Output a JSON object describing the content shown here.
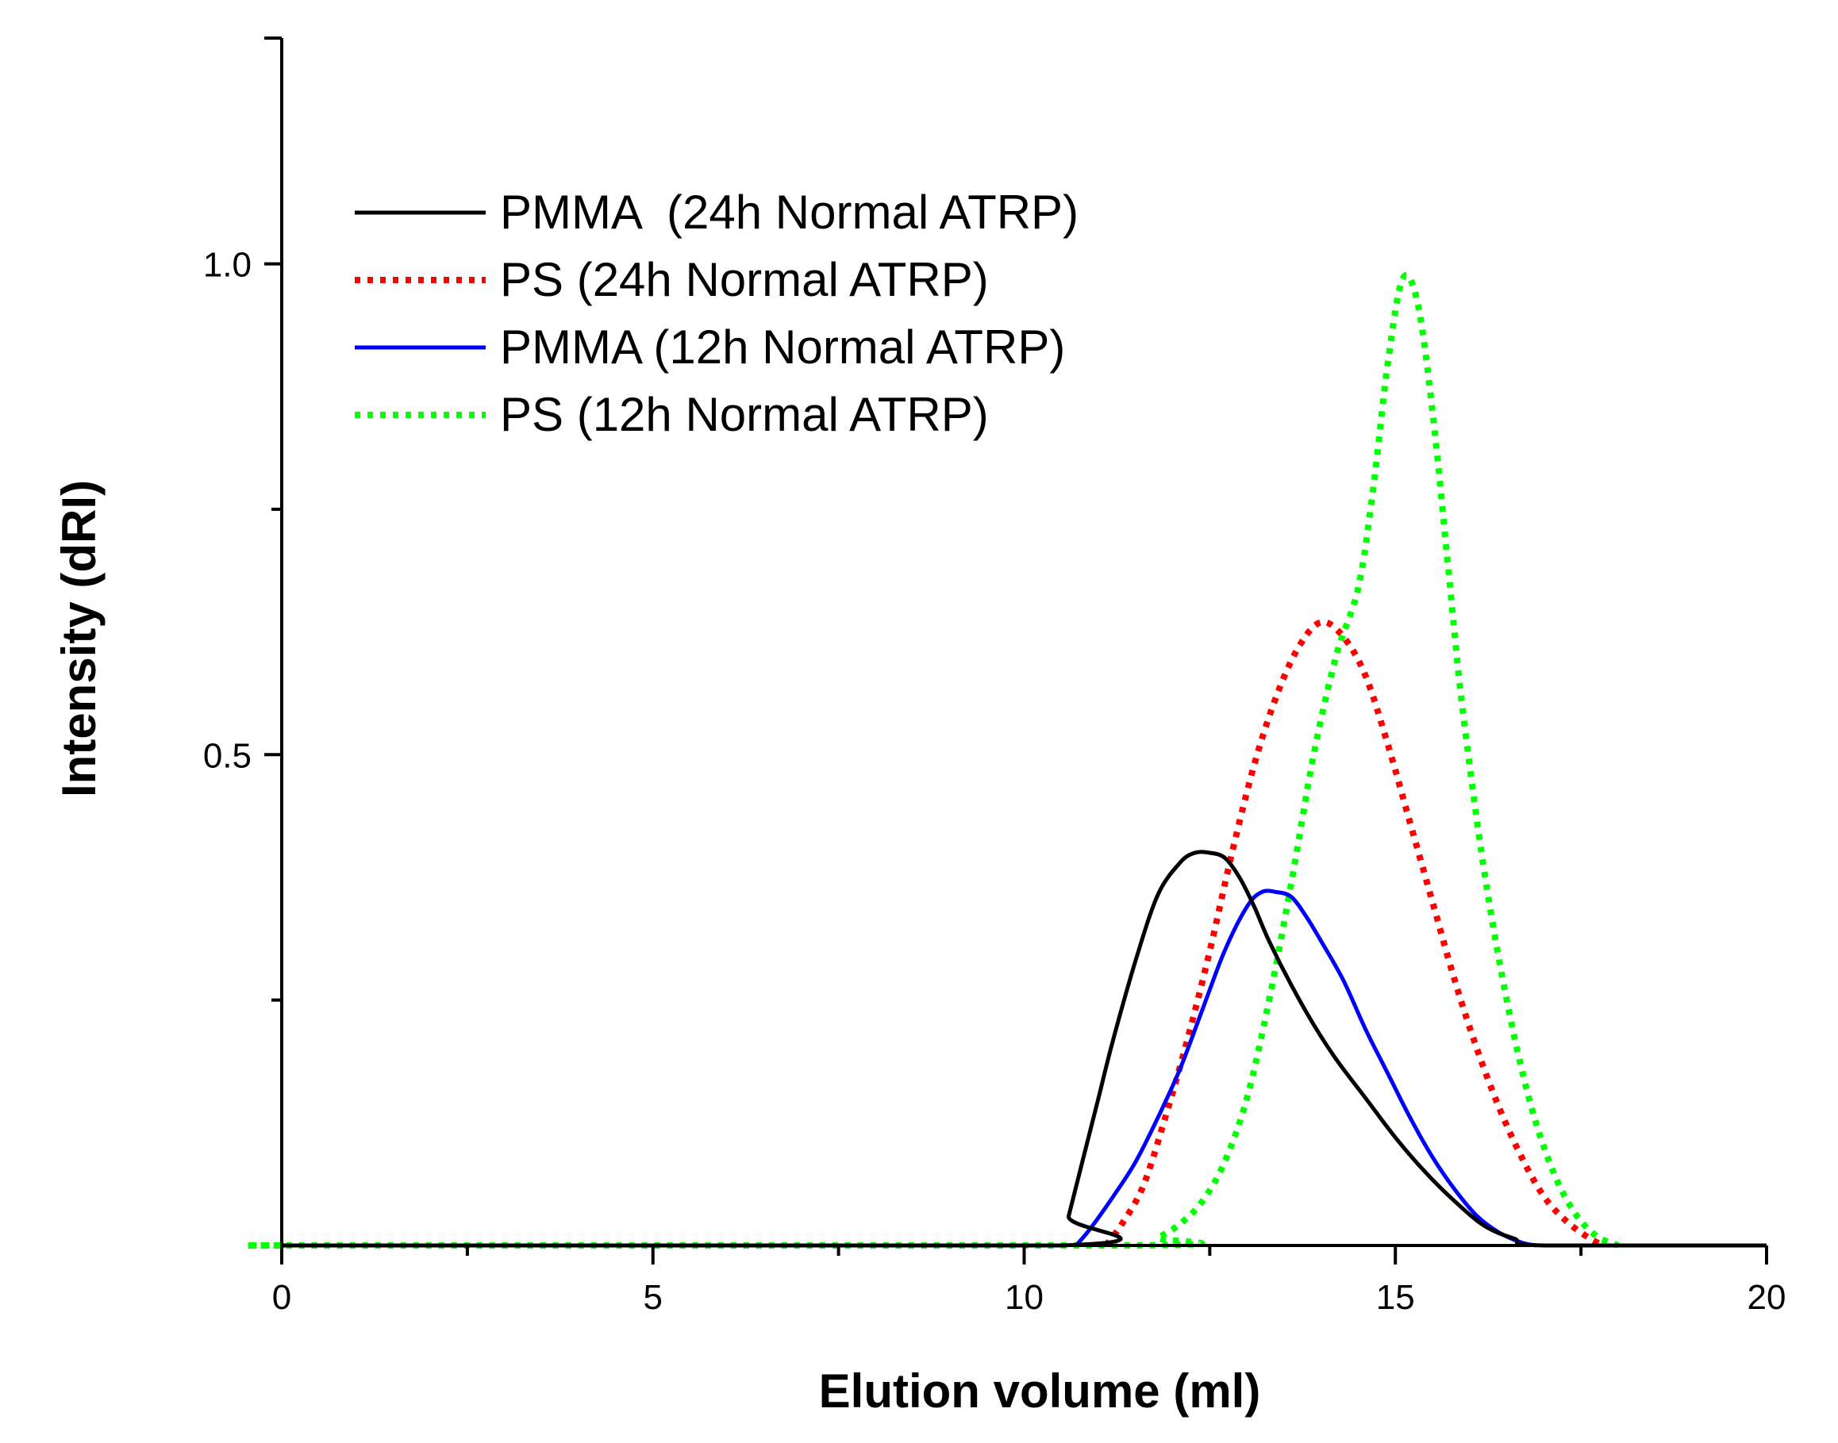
{
  "chart_data": {
    "type": "line",
    "xlabel": "Elution volume (ml)",
    "ylabel": "Intensity (dRI)",
    "xlim": [
      0,
      20
    ],
    "ylim": [
      0,
      1.23
    ],
    "x_ticks_major": [
      0,
      5,
      10,
      15,
      20
    ],
    "x_ticks_minor": [
      2.5,
      7.5,
      12.5,
      17.5
    ],
    "y_ticks_labeled": [
      {
        "value": 0.5,
        "label": "0.5"
      },
      {
        "value": 1.0,
        "label": "1.0"
      }
    ],
    "y_ticks_unlabeled": [
      0.25,
      0.75
    ],
    "grid": false,
    "legend_position": "upper-left",
    "series": [
      {
        "name": "PMMA  (24h Normal ATRP)",
        "color": "#000000",
        "style": "solid",
        "x": [
          0,
          10.5,
          10.6,
          10.8,
          11.0,
          11.2,
          11.5,
          11.8,
          12.1,
          12.3,
          12.5,
          12.7,
          12.9,
          13.1,
          13.3,
          13.6,
          13.9,
          14.2,
          14.6,
          15.0,
          15.4,
          15.8,
          16.2,
          16.6,
          17.0,
          20
        ],
        "y": [
          0,
          0,
          0.03,
          0.09,
          0.15,
          0.21,
          0.29,
          0.357,
          0.39,
          0.4,
          0.4,
          0.395,
          0.375,
          0.345,
          0.31,
          0.265,
          0.225,
          0.19,
          0.15,
          0.11,
          0.075,
          0.045,
          0.02,
          0.007,
          0,
          0
        ]
      },
      {
        "name": "PS (24h Normal ATRP)",
        "color": "#ff0000",
        "style": "dotted",
        "x": [
          11.1,
          11.3,
          11.6,
          11.9,
          12.2,
          12.5,
          12.8,
          13.1,
          13.4,
          13.7,
          14.0,
          14.3,
          14.6,
          14.9,
          15.2,
          15.5,
          15.8,
          16.1,
          16.4,
          16.7,
          17.0,
          17.3,
          17.6,
          17.8
        ],
        "y": [
          0,
          0.02,
          0.06,
          0.13,
          0.21,
          0.3,
          0.4,
          0.49,
          0.56,
          0.61,
          0.635,
          0.62,
          0.58,
          0.51,
          0.43,
          0.35,
          0.27,
          0.2,
          0.14,
          0.09,
          0.05,
          0.025,
          0.008,
          0
        ]
      },
      {
        "name": "PMMA (12h Normal ATRP)",
        "color": "#0000ff",
        "style": "solid",
        "x": [
          10.7,
          10.9,
          11.2,
          11.5,
          11.8,
          12.1,
          12.4,
          12.7,
          13.0,
          13.2,
          13.4,
          13.6,
          13.8,
          14.0,
          14.3,
          14.6,
          14.9,
          15.2,
          15.5,
          15.8,
          16.1,
          16.4,
          16.7,
          16.9
        ],
        "y": [
          0,
          0.018,
          0.05,
          0.085,
          0.13,
          0.18,
          0.24,
          0.3,
          0.345,
          0.36,
          0.36,
          0.355,
          0.335,
          0.31,
          0.27,
          0.22,
          0.175,
          0.13,
          0.09,
          0.057,
          0.03,
          0.013,
          0.003,
          0
        ]
      },
      {
        "name": "PS (12h Normal ATRP)",
        "color": "#00ff00",
        "style": "dotted",
        "x": [
          0,
          0.5,
          11.5,
          11.8,
          12.1,
          12.4,
          12.7,
          13.0,
          13.3,
          13.6,
          13.9,
          14.2,
          14.5,
          14.7,
          14.9,
          15.1,
          15.3,
          15.5,
          15.7,
          15.9,
          16.2,
          16.5,
          16.8,
          17.1,
          17.4,
          17.7,
          18.0
        ],
        "y": [
          0,
          0,
          0,
          0.008,
          0.022,
          0.045,
          0.085,
          0.15,
          0.25,
          0.37,
          0.5,
          0.6,
          0.67,
          0.77,
          0.9,
          0.985,
          0.96,
          0.85,
          0.7,
          0.55,
          0.38,
          0.25,
          0.15,
          0.08,
          0.035,
          0.01,
          0
        ]
      }
    ]
  }
}
